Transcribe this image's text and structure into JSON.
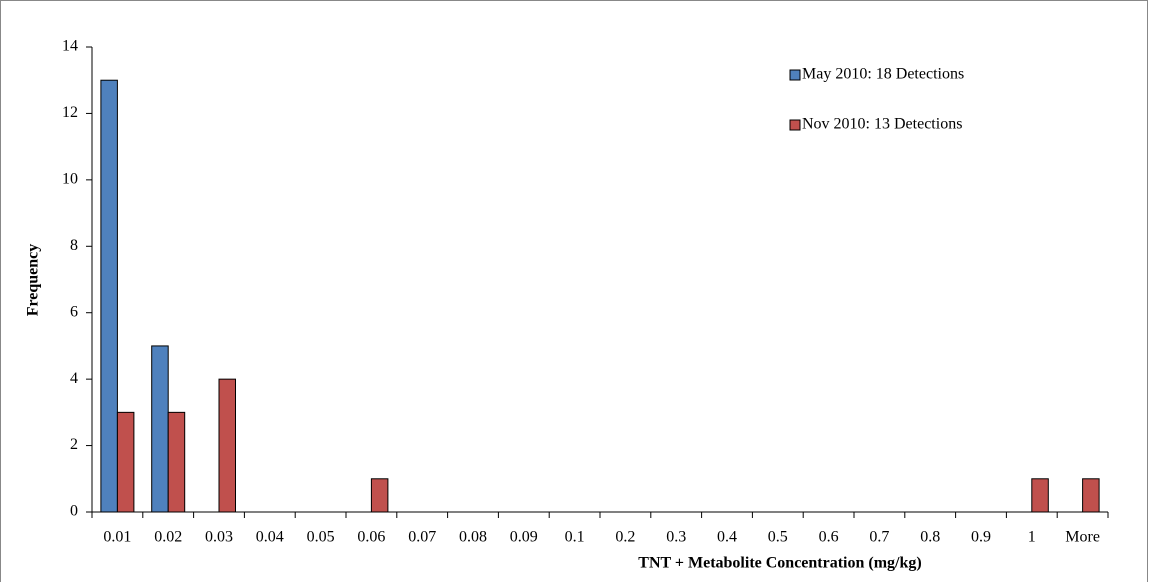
{
  "chart_data": {
    "type": "bar",
    "x_label": "TNT + Metabolite Concentration (mg/kg)",
    "y_label": "Frequency",
    "categories": [
      "0.01",
      "0.02",
      "0.03",
      "0.04",
      "0.05",
      "0.06",
      "0.07",
      "0.08",
      "0.09",
      "0.1",
      "0.2",
      "0.3",
      "0.4",
      "0.5",
      "0.6",
      "0.7",
      "0.8",
      "0.9",
      "1",
      "More"
    ],
    "series": [
      {
        "name": "May 2010: 18 Detections",
        "color": "#4f81bd",
        "values": [
          13,
          5,
          0,
          0,
          0,
          0,
          0,
          0,
          0,
          0,
          0,
          0,
          0,
          0,
          0,
          0,
          0,
          0,
          0,
          0
        ]
      },
      {
        "name": "Nov 2010: 13 Detections",
        "color": "#c0504d",
        "values": [
          3,
          3,
          4,
          0,
          0,
          1,
          0,
          0,
          0,
          0,
          0,
          0,
          0,
          0,
          0,
          0,
          0,
          0,
          1,
          1
        ]
      }
    ],
    "ylim": [
      0,
      14
    ],
    "yticks": [
      0,
      2,
      4,
      6,
      8,
      10,
      12,
      14
    ],
    "grid": false,
    "legend": "upper right"
  }
}
